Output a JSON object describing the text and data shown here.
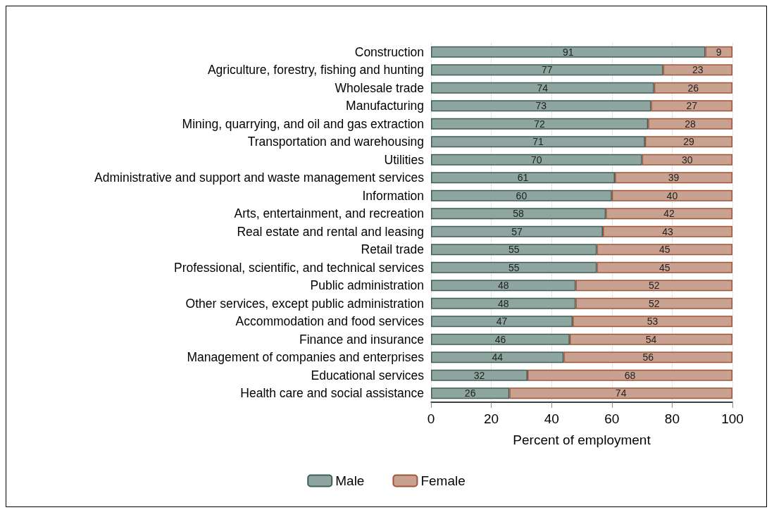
{
  "chart_data": {
    "type": "bar",
    "orientation": "horizontal",
    "stacked": true,
    "xlabel": "Percent of employment",
    "categories": [
      "Construction",
      "Agriculture, forestry, fishing and hunting",
      "Wholesale trade",
      "Manufacturing",
      "Mining, quarrying, and oil and gas extraction",
      "Transportation and warehousing",
      "Utilities",
      "Administrative and support and waste management services",
      "Information",
      "Arts, entertainment, and recreation",
      "Real estate and rental and leasing",
      "Retail trade",
      "Professional, scientific, and technical services",
      "Public administration",
      "Other services, except public administration",
      "Accommodation and food services",
      "Finance and insurance",
      "Management of companies and enterprises",
      "Educational services",
      "Health care and social assistance"
    ],
    "series": [
      {
        "name": "Male",
        "color": "#8fa5a0",
        "values": [
          91,
          77,
          74,
          73,
          72,
          71,
          70,
          61,
          60,
          58,
          57,
          55,
          55,
          48,
          48,
          47,
          46,
          44,
          32,
          26
        ]
      },
      {
        "name": "Female",
        "color": "#c9a190",
        "values": [
          9,
          23,
          26,
          27,
          28,
          29,
          30,
          39,
          40,
          42,
          43,
          45,
          45,
          52,
          52,
          53,
          54,
          56,
          68,
          74
        ]
      }
    ],
    "xlim": [
      0,
      100
    ],
    "xticks": [
      0,
      20,
      40,
      60,
      80,
      100
    ],
    "data_labels": true,
    "grid": "x",
    "legend": "bottom"
  }
}
